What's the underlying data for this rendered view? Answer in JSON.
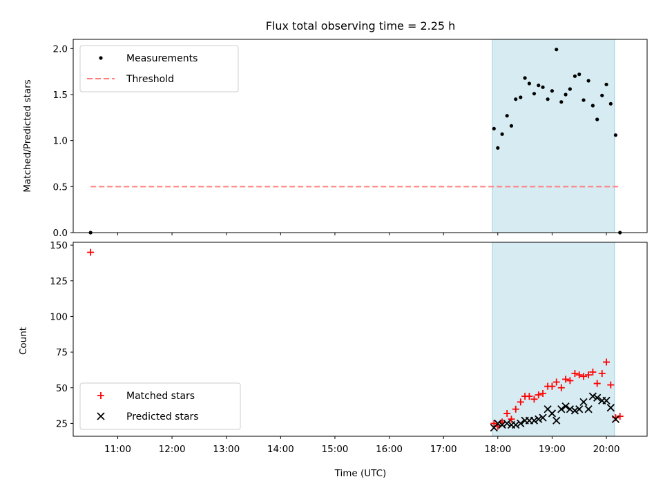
{
  "chart_data": [
    {
      "type": "scatter",
      "title": "Flux total observing time = 2.25 h",
      "xlabel": "",
      "ylabel": "Matched/Predicted stars",
      "xlim": [
        10.18,
        20.75
      ],
      "ylim": [
        0,
        2.1
      ],
      "yticks": [
        0.0,
        0.5,
        1.0,
        1.5,
        2.0
      ],
      "ytick_labels": [
        "0.0",
        "0.5",
        "1.0",
        "1.5",
        "2.0"
      ],
      "xticks": [
        11,
        12,
        13,
        14,
        15,
        16,
        17,
        18,
        19,
        20
      ],
      "shaded_region": {
        "x0": 17.9,
        "x1": 20.15,
        "color": "#add8e6"
      },
      "legend": {
        "position": "top-left",
        "entries": [
          "Measurements",
          "Threshold"
        ]
      },
      "series": [
        {
          "name": "Measurements",
          "marker": "dot",
          "color": "#000000",
          "points": [
            [
              10.5,
              0.0
            ],
            [
              17.93,
              1.13
            ],
            [
              18.0,
              0.92
            ],
            [
              18.08,
              1.07
            ],
            [
              18.17,
              1.27
            ],
            [
              18.25,
              1.16
            ],
            [
              18.33,
              1.45
            ],
            [
              18.42,
              1.47
            ],
            [
              18.5,
              1.68
            ],
            [
              18.58,
              1.62
            ],
            [
              18.67,
              1.51
            ],
            [
              18.75,
              1.6
            ],
            [
              18.83,
              1.58
            ],
            [
              18.92,
              1.45
            ],
            [
              19.0,
              1.54
            ],
            [
              19.08,
              1.99
            ],
            [
              19.17,
              1.42
            ],
            [
              19.25,
              1.5
            ],
            [
              19.33,
              1.56
            ],
            [
              19.42,
              1.7
            ],
            [
              19.5,
              1.72
            ],
            [
              19.58,
              1.44
            ],
            [
              19.67,
              1.65
            ],
            [
              19.75,
              1.38
            ],
            [
              19.83,
              1.23
            ],
            [
              19.92,
              1.49
            ],
            [
              20.0,
              1.61
            ],
            [
              20.08,
              1.4
            ],
            [
              20.17,
              1.06
            ],
            [
              20.25,
              0.0
            ]
          ]
        },
        {
          "name": "Threshold",
          "style": "dashed",
          "color": "#ff7f7f",
          "points": [
            [
              10.5,
              0.5
            ],
            [
              20.25,
              0.5
            ]
          ]
        }
      ]
    },
    {
      "type": "scatter",
      "title": "",
      "xlabel": "Time (UTC)",
      "ylabel": "Count",
      "xlim": [
        10.18,
        20.75
      ],
      "ylim": [
        16,
        152
      ],
      "yticks": [
        25,
        50,
        75,
        100,
        125,
        150
      ],
      "ytick_labels": [
        "25",
        "50",
        "75",
        "100",
        "125",
        "150"
      ],
      "xticks": [
        11,
        12,
        13,
        14,
        15,
        16,
        17,
        18,
        19,
        20
      ],
      "xtick_labels": [
        "11:00",
        "12:00",
        "13:00",
        "14:00",
        "15:00",
        "16:00",
        "17:00",
        "18:00",
        "19:00",
        "20:00"
      ],
      "shaded_region": {
        "x0": 17.9,
        "x1": 20.15,
        "color": "#add8e6"
      },
      "legend": {
        "position": "bottom-left",
        "entries": [
          "Matched stars",
          "Predicted stars"
        ]
      },
      "series": [
        {
          "name": "Matched stars",
          "marker": "plus",
          "color": "#ff0000",
          "points": [
            [
              10.5,
              145
            ],
            [
              17.93,
              25
            ],
            [
              18.0,
              23
            ],
            [
              18.08,
              26
            ],
            [
              18.17,
              32
            ],
            [
              18.25,
              28
            ],
            [
              18.33,
              35
            ],
            [
              18.42,
              40
            ],
            [
              18.5,
              44
            ],
            [
              18.58,
              44
            ],
            [
              18.67,
              42
            ],
            [
              18.75,
              45
            ],
            [
              18.83,
              46
            ],
            [
              18.92,
              51
            ],
            [
              19.0,
              51
            ],
            [
              19.08,
              54
            ],
            [
              19.17,
              50
            ],
            [
              19.25,
              56
            ],
            [
              19.33,
              55
            ],
            [
              19.42,
              60
            ],
            [
              19.5,
              59
            ],
            [
              19.58,
              58
            ],
            [
              19.67,
              59
            ],
            [
              19.75,
              61
            ],
            [
              19.83,
              53
            ],
            [
              19.92,
              60
            ],
            [
              20.0,
              68
            ],
            [
              20.08,
              52
            ],
            [
              20.17,
              29
            ],
            [
              20.25,
              30
            ]
          ]
        },
        {
          "name": "Predicted stars",
          "marker": "x",
          "color": "#000000",
          "points": [
            [
              17.93,
              22
            ],
            [
              18.0,
              25
            ],
            [
              18.08,
              24
            ],
            [
              18.17,
              25
            ],
            [
              18.25,
              24
            ],
            [
              18.33,
              24
            ],
            [
              18.42,
              25
            ],
            [
              18.5,
              27
            ],
            [
              18.58,
              27
            ],
            [
              18.67,
              27
            ],
            [
              18.75,
              28
            ],
            [
              18.83,
              29
            ],
            [
              18.92,
              35
            ],
            [
              19.0,
              32
            ],
            [
              19.08,
              27
            ],
            [
              19.17,
              35
            ],
            [
              19.25,
              37
            ],
            [
              19.33,
              35
            ],
            [
              19.42,
              34
            ],
            [
              19.5,
              35
            ],
            [
              19.58,
              40
            ],
            [
              19.67,
              35
            ],
            [
              19.75,
              44
            ],
            [
              19.83,
              43
            ],
            [
              19.92,
              41
            ],
            [
              20.0,
              41
            ],
            [
              20.08,
              36
            ],
            [
              20.17,
              28
            ]
          ]
        }
      ]
    }
  ]
}
